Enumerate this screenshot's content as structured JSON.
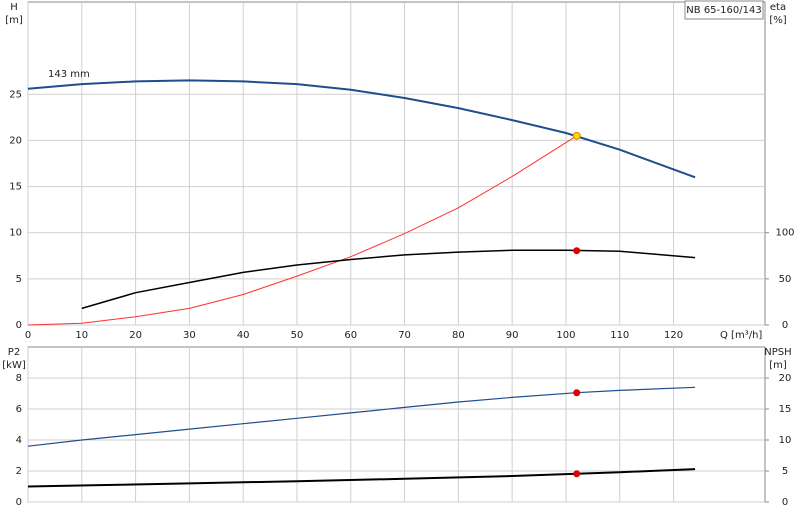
{
  "chart_data": [
    {
      "type": "line",
      "title": "NB 65-160/143",
      "annotation": "143 mm",
      "y_label": "H",
      "y_unit": "[m]",
      "y2_label": "eta",
      "y2_unit": "[%]",
      "x_label": "Q [m³/h]",
      "xlim": [
        0,
        137
      ],
      "xticks": [
        0,
        10,
        20,
        30,
        40,
        50,
        60,
        70,
        80,
        90,
        100,
        110,
        120
      ],
      "xtick_labels": true,
      "ylim": [
        0,
        35
      ],
      "yticks": [
        0,
        5,
        10,
        15,
        20,
        25
      ],
      "y2lim": [
        0,
        350
      ],
      "y2ticks": [
        0,
        50,
        100
      ],
      "grid": true,
      "series": [
        {
          "color": "#1f4e8c",
          "line_width": 2,
          "x": [
            0,
            10,
            20,
            30,
            40,
            50,
            60,
            70,
            80,
            90,
            100,
            110,
            124
          ],
          "values": [
            25.6,
            26.1,
            26.4,
            26.5,
            26.4,
            26.1,
            25.5,
            24.6,
            23.5,
            22.2,
            20.8,
            19,
            16
          ]
        },
        {
          "color": "#ff3030",
          "line_width": 1,
          "x": [
            0,
            10,
            20,
            30,
            40,
            50,
            60,
            70,
            80,
            90,
            102
          ],
          "values": [
            0,
            0.2,
            0.9,
            1.8,
            3.3,
            5.3,
            7.4,
            9.9,
            12.7,
            16.1,
            20.5
          ]
        },
        {
          "color": "#000000",
          "line_width": 1.5,
          "axis": "y2",
          "x": [
            10,
            20,
            30,
            40,
            50,
            60,
            70,
            80,
            90,
            100,
            110,
            124
          ],
          "values": [
            18,
            35,
            46,
            57,
            65,
            71,
            76,
            79,
            81,
            81,
            80,
            73
          ]
        },
        {
          "color": "#ffd700",
          "x": [
            102
          ],
          "values": [
            20.5
          ]
        },
        {
          "color": "#e00000",
          "axis": "y2",
          "x": [
            102
          ],
          "values": [
            80.5
          ]
        }
      ]
    },
    {
      "type": "line",
      "y_label": "P2",
      "y_unit": "[kW]",
      "y2_label": "NPSH",
      "y2_unit": "[m]",
      "xlim": [
        0,
        137
      ],
      "xticks": [
        0,
        10,
        20,
        30,
        40,
        50,
        60,
        70,
        80,
        90,
        100,
        110,
        120
      ],
      "xtick_labels": false,
      "ylim": [
        0,
        10
      ],
      "yticks": [
        0,
        2,
        4,
        6,
        8
      ],
      "y2lim": [
        0,
        25
      ],
      "y2ticks": [
        0,
        5,
        10,
        15,
        20
      ],
      "grid": true,
      "series": [
        {
          "color": "#1f4e8c",
          "line_width": 1.2,
          "x": [
            0,
            10,
            20,
            30,
            40,
            50,
            60,
            70,
            80,
            90,
            102,
            110,
            124
          ],
          "values": [
            3.6,
            4.0,
            4.35,
            4.7,
            5.05,
            5.4,
            5.75,
            6.1,
            6.45,
            6.75,
            7.05,
            7.2,
            7.4
          ]
        },
        {
          "color": "#000000",
          "line_width": 2,
          "axis": "y2",
          "x": [
            0,
            12,
            30,
            50,
            70,
            90,
            102,
            110,
            124
          ],
          "values": [
            2.5,
            2.7,
            3.0,
            3.35,
            3.75,
            4.2,
            4.55,
            4.8,
            5.3
          ]
        },
        {
          "color": "#e00000",
          "x": [
            102
          ],
          "values": [
            7.05
          ]
        },
        {
          "color": "#e00000",
          "axis": "y2",
          "x": [
            102
          ],
          "values": [
            4.55
          ]
        }
      ]
    }
  ]
}
